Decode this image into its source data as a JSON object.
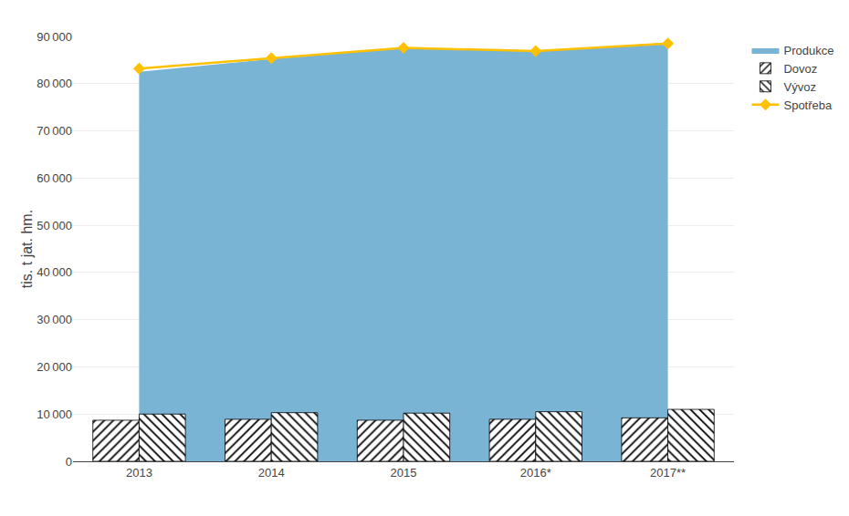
{
  "chart_data": {
    "type": "bar",
    "categories": [
      "2013",
      "2014",
      "2015",
      "2016*",
      "2017**"
    ],
    "series": [
      {
        "name": "Produkce",
        "type": "area",
        "color": "#7AB4D4",
        "values": [
          82500,
          85200,
          87500,
          86800,
          88700
        ]
      },
      {
        "name": "Dovoz",
        "type": "bar",
        "color": "#ffffff",
        "values": [
          8700,
          8900,
          8700,
          8900,
          9200
        ]
      },
      {
        "name": "Vývoz",
        "type": "bar",
        "color": "#ffffff",
        "values": [
          10000,
          10300,
          10200,
          10500,
          11000
        ]
      },
      {
        "name": "Spotřeba",
        "type": "line",
        "color": "#FFC000",
        "marker": "diamond",
        "values": [
          83200,
          85400,
          87600,
          86900,
          88500
        ]
      }
    ],
    "ylabel": "tis. t jat. hm.",
    "ylim": [
      0,
      90000
    ],
    "yticks": [
      0,
      {
        "value": 10000,
        "label": "10 000"
      },
      {
        "value": 20000,
        "label": "20 000"
      },
      {
        "value": 30000,
        "label": "30 000"
      },
      {
        "value": 40000,
        "label": "40 000"
      },
      {
        "value": 50000,
        "label": "50 000"
      },
      {
        "value": 60000,
        "label": "60 000"
      },
      {
        "value": 70000,
        "label": "70 000"
      },
      {
        "value": 80000,
        "label": "80 000"
      },
      {
        "value": 90000,
        "label": "90 000"
      }
    ],
    "grid": true,
    "legend": "right"
  }
}
